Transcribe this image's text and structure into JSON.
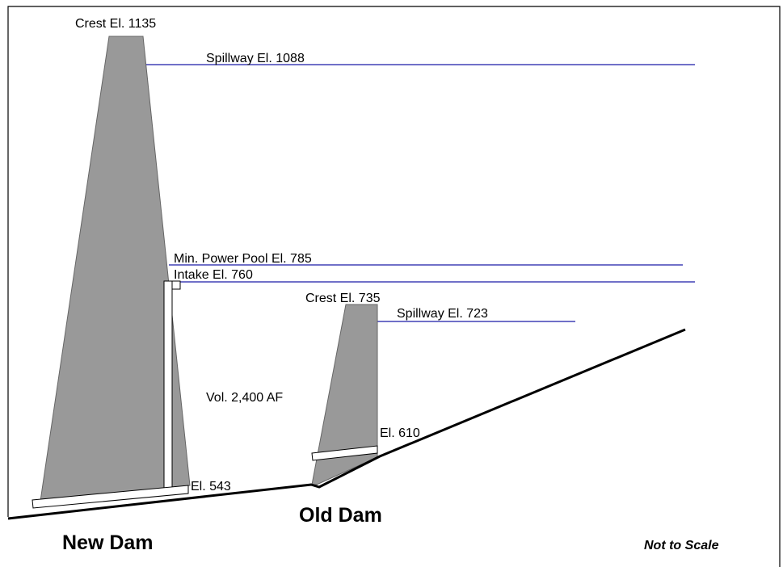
{
  "labels": {
    "new_crest": "Crest El. 1135",
    "new_spillway": "Spillway El. 1088",
    "min_power_pool": "Min. Power Pool El. 785",
    "intake": "Intake El. 760",
    "old_crest": "Crest El. 735",
    "old_spillway": "Spillway El. 723",
    "volume": "Vol. 2,400 AF",
    "old_base": "El. 610",
    "new_base": "El. 543",
    "new_dam": "New Dam",
    "old_dam": "Old Dam",
    "scale_note": "Not to Scale"
  }
}
